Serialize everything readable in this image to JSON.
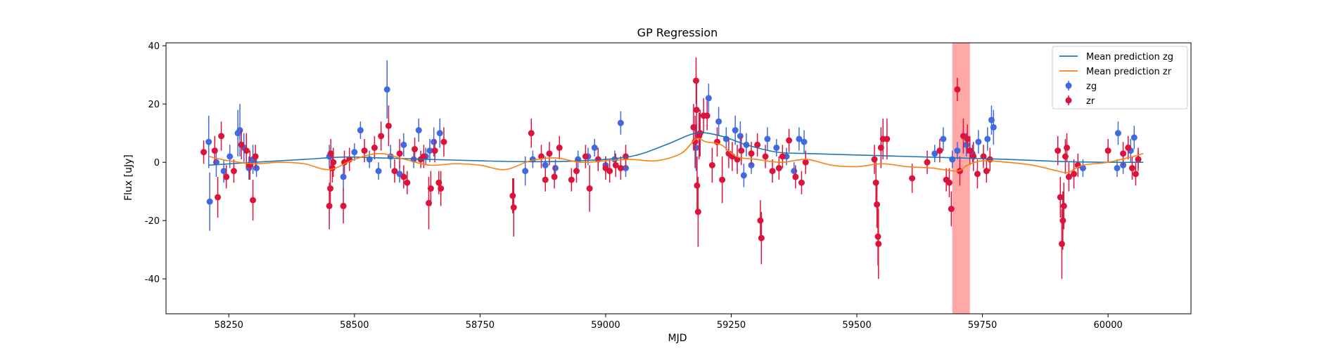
{
  "chart_data": {
    "type": "scatter",
    "title": "GP Regression",
    "xlabel": "MJD",
    "ylabel": "Flux [uJy]",
    "xlim": [
      58125,
      60165
    ],
    "ylim": [
      -52,
      41
    ],
    "xticks": [
      58250,
      58500,
      58750,
      59000,
      59250,
      59500,
      59750,
      60000
    ],
    "yticks": [
      -40,
      -20,
      0,
      20,
      40
    ],
    "legend_position": "top-right",
    "highlight_region": {
      "x_range": [
        59690,
        59725
      ],
      "color": "#ff9f9f"
    },
    "mean_predictions": [
      {
        "name": "Mean prediction zg",
        "color": "#1f77b4",
        "x": [
          58210,
          58300,
          58400,
          58480,
          58550,
          58650,
          58750,
          58850,
          58950,
          59050,
          59120,
          59180,
          59230,
          59280,
          59340,
          59400,
          59500,
          59600,
          59700,
          59800,
          59900,
          60000,
          60070
        ],
        "y": [
          -1.0,
          0.0,
          1.0,
          1.8,
          1.5,
          1.0,
          0.5,
          0.2,
          0.5,
          2.0,
          6.0,
          10.0,
          9.0,
          6.0,
          3.5,
          3.0,
          2.5,
          2.0,
          1.5,
          1.0,
          0.3,
          0.0,
          0.0
        ]
      },
      {
        "name": "Mean prediction zr",
        "color": "#ff7f0e",
        "x": [
          58210,
          58250,
          58300,
          58350,
          58400,
          58450,
          58500,
          58550,
          58600,
          58650,
          58700,
          58750,
          58800,
          58850,
          58900,
          58950,
          59000,
          59050,
          59100,
          59150,
          59180,
          59200,
          59230,
          59260,
          59300,
          59350,
          59400,
          59450,
          59500,
          59550,
          59600,
          59650,
          59700,
          59720,
          59750,
          59800,
          59850,
          59900,
          59920,
          59950,
          60000,
          60050,
          60070
        ],
        "y": [
          2.0,
          0.5,
          -0.5,
          0.0,
          -0.5,
          -2.5,
          1.0,
          3.0,
          1.0,
          -1.0,
          -0.5,
          -1.0,
          -2.5,
          0.5,
          1.5,
          0.0,
          0.5,
          1.0,
          0.5,
          3.0,
          8.0,
          7.0,
          6.0,
          2.0,
          1.0,
          0.0,
          1.0,
          -1.0,
          -1.5,
          -0.5,
          -1.5,
          -2.0,
          -3.0,
          -1.0,
          0.5,
          0.0,
          -1.0,
          -3.0,
          -3.5,
          -1.0,
          0.0,
          2.0,
          3.0
        ]
      }
    ],
    "series": [
      {
        "name": "zg",
        "color": "#4169e1",
        "points": [
          [
            58210,
            7,
            9
          ],
          [
            58212,
            -13.5,
            10
          ],
          [
            58225,
            0,
            5
          ],
          [
            58240,
            -3,
            4
          ],
          [
            58252,
            2,
            4
          ],
          [
            58268,
            10,
            8
          ],
          [
            58272,
            11,
            9
          ],
          [
            58280,
            5,
            5
          ],
          [
            58290,
            -2,
            4
          ],
          [
            58298,
            1,
            5
          ],
          [
            58305,
            -2,
            3
          ],
          [
            58450,
            2,
            4
          ],
          [
            58478,
            -5,
            5
          ],
          [
            58500,
            3.5,
            3
          ],
          [
            58512,
            11,
            3
          ],
          [
            58530,
            1,
            3
          ],
          [
            58548,
            -3,
            3
          ],
          [
            58565,
            25,
            10
          ],
          [
            58572,
            2,
            4
          ],
          [
            58590,
            -4,
            3
          ],
          [
            58598,
            6,
            4
          ],
          [
            58618,
            1,
            3
          ],
          [
            58628,
            11,
            4
          ],
          [
            58642,
            2,
            3
          ],
          [
            58650,
            4,
            4
          ],
          [
            58658,
            7,
            5
          ],
          [
            58670,
            10,
            5
          ],
          [
            58840,
            -3,
            5
          ],
          [
            58855,
            1,
            3
          ],
          [
            58880,
            -1,
            3
          ],
          [
            58900,
            -2,
            3
          ],
          [
            58945,
            1,
            3
          ],
          [
            58965,
            2,
            3
          ],
          [
            58978,
            5,
            3
          ],
          [
            59000,
            -1,
            3
          ],
          [
            59018,
            1,
            3
          ],
          [
            59030,
            13.5,
            4
          ],
          [
            59040,
            -2,
            3
          ],
          [
            59180,
            5,
            8
          ],
          [
            59205,
            22,
            5
          ],
          [
            59225,
            14,
            5
          ],
          [
            59240,
            8,
            4
          ],
          [
            59258,
            11,
            5
          ],
          [
            59268,
            9,
            5
          ],
          [
            59275,
            -4.5,
            4
          ],
          [
            59280,
            6,
            4
          ],
          [
            59290,
            -1,
            3
          ],
          [
            59322,
            8,
            4
          ],
          [
            59340,
            5,
            3
          ],
          [
            59360,
            2,
            3
          ],
          [
            59375,
            -3,
            3
          ],
          [
            59385,
            8,
            4
          ],
          [
            59395,
            7,
            4
          ],
          [
            59655,
            3,
            3
          ],
          [
            59672,
            8,
            4
          ],
          [
            59690,
            1,
            3
          ],
          [
            59700,
            4,
            3
          ],
          [
            59718,
            6,
            4
          ],
          [
            59730,
            3,
            3
          ],
          [
            59742,
            7,
            4
          ],
          [
            59760,
            8,
            4
          ],
          [
            59768,
            14.5,
            5
          ],
          [
            59772,
            12,
            6
          ],
          [
            59950,
            -2,
            3
          ],
          [
            60018,
            -2,
            3
          ],
          [
            60020,
            10,
            4
          ],
          [
            60030,
            -1,
            3
          ],
          [
            60045,
            4,
            4
          ],
          [
            60052,
            8.5,
            4
          ],
          [
            60060,
            1,
            3
          ]
        ]
      },
      {
        "name": "zr",
        "color": "#dc143c",
        "points": [
          [
            58200,
            3.5,
            4
          ],
          [
            58222,
            4,
            5
          ],
          [
            58228,
            -12,
            7
          ],
          [
            58235,
            9,
            5
          ],
          [
            58245,
            -5,
            4
          ],
          [
            58260,
            -3,
            4
          ],
          [
            58275,
            6,
            5
          ],
          [
            58285,
            4,
            6
          ],
          [
            58292,
            -1,
            5
          ],
          [
            58298,
            -13,
            7
          ],
          [
            58303,
            2,
            4
          ],
          [
            58450,
            -15,
            8
          ],
          [
            58452,
            -9,
            7
          ],
          [
            58453,
            3,
            5
          ],
          [
            58456,
            -2,
            5
          ],
          [
            58458,
            0,
            5
          ],
          [
            58478,
            -15,
            6
          ],
          [
            58480,
            0,
            4
          ],
          [
            58490,
            1,
            4
          ],
          [
            58520,
            4,
            4
          ],
          [
            58540,
            5,
            4
          ],
          [
            58553,
            9,
            5
          ],
          [
            58568,
            12.5,
            7
          ],
          [
            58580,
            -3,
            4
          ],
          [
            58590,
            3,
            5
          ],
          [
            58598,
            -5,
            4
          ],
          [
            58605,
            -7,
            4
          ],
          [
            58620,
            4.5,
            4
          ],
          [
            58632,
            1,
            3
          ],
          [
            58638,
            2,
            4
          ],
          [
            58648,
            -14,
            9
          ],
          [
            58652,
            -9,
            6
          ],
          [
            58660,
            4,
            4
          ],
          [
            58668,
            -7,
            4
          ],
          [
            58672,
            -9,
            6
          ],
          [
            58678,
            7,
            5
          ],
          [
            58815,
            -11.5,
            6
          ],
          [
            58817,
            -15.5,
            10
          ],
          [
            58852,
            10,
            5
          ],
          [
            58872,
            2,
            4
          ],
          [
            58880,
            -6,
            4
          ],
          [
            58888,
            3,
            4
          ],
          [
            58898,
            -5,
            4
          ],
          [
            58908,
            5,
            4
          ],
          [
            58932,
            -6,
            4
          ],
          [
            58942,
            -3,
            4
          ],
          [
            58960,
            2,
            4
          ],
          [
            58968,
            -9,
            8
          ],
          [
            58985,
            1,
            4
          ],
          [
            59000,
            -2,
            4
          ],
          [
            59008,
            -3,
            4
          ],
          [
            59020,
            -1,
            4
          ],
          [
            59030,
            -2,
            4
          ],
          [
            59040,
            2,
            4
          ],
          [
            59175,
            12,
            8
          ],
          [
            59178,
            7,
            9
          ],
          [
            59180,
            28,
            8
          ],
          [
            59181,
            18,
            9
          ],
          [
            59182,
            -8,
            10
          ],
          [
            59184,
            -17,
            12
          ],
          [
            59186,
            9,
            8
          ],
          [
            59188,
            10,
            8
          ],
          [
            59195,
            16,
            6
          ],
          [
            59202,
            16,
            5
          ],
          [
            59212,
            -1,
            6
          ],
          [
            59222,
            7,
            5
          ],
          [
            59232,
            -6,
            8
          ],
          [
            59245,
            3,
            5
          ],
          [
            59252,
            2,
            5
          ],
          [
            59262,
            1,
            5
          ],
          [
            59270,
            4,
            5
          ],
          [
            59290,
            3,
            4
          ],
          [
            59302,
            6,
            4
          ],
          [
            59308,
            -20,
            7
          ],
          [
            59310,
            -26,
            9
          ],
          [
            59318,
            2,
            4
          ],
          [
            59332,
            -3,
            4
          ],
          [
            59345,
            -2,
            4
          ],
          [
            59352,
            2,
            4
          ],
          [
            59365,
            7.5,
            4
          ],
          [
            59378,
            -5,
            4
          ],
          [
            59390,
            -7,
            4
          ],
          [
            59398,
            0,
            4
          ],
          [
            59535,
            1,
            5
          ],
          [
            59538,
            -7,
            7
          ],
          [
            59540,
            -14.5,
            8
          ],
          [
            59542,
            -25.5,
            10
          ],
          [
            59543,
            -28,
            12
          ],
          [
            59548,
            5,
            7
          ],
          [
            59552,
            8,
            7
          ],
          [
            59560,
            8,
            7
          ],
          [
            59610,
            -5.5,
            5
          ],
          [
            59640,
            0,
            4
          ],
          [
            59665,
            4,
            4
          ],
          [
            59678,
            -6,
            4
          ],
          [
            59684,
            -7,
            5
          ],
          [
            59688,
            -16,
            6
          ],
          [
            59700,
            25,
            4
          ],
          [
            59705,
            -3,
            5
          ],
          [
            59712,
            9,
            6
          ],
          [
            59720,
            8,
            5
          ],
          [
            59725,
            4,
            5
          ],
          [
            59732,
            2,
            5
          ],
          [
            59740,
            -4,
            5
          ],
          [
            59752,
            2,
            4
          ],
          [
            59758,
            -3,
            4
          ],
          [
            59765,
            1,
            4
          ],
          [
            59900,
            4,
            5
          ],
          [
            59905,
            -12,
            7
          ],
          [
            59908,
            -28,
            12
          ],
          [
            59910,
            -20,
            10
          ],
          [
            59912,
            -15,
            8
          ],
          [
            59915,
            2,
            6
          ],
          [
            59918,
            5,
            5
          ],
          [
            59922,
            -5,
            5
          ],
          [
            59932,
            -4,
            5
          ],
          [
            59940,
            -1,
            4
          ],
          [
            60000,
            4,
            4
          ],
          [
            60030,
            3,
            4
          ],
          [
            60040,
            5,
            4
          ],
          [
            60048,
            -2,
            4
          ],
          [
            60055,
            -4,
            4
          ],
          [
            60060,
            1,
            4
          ]
        ]
      }
    ]
  }
}
